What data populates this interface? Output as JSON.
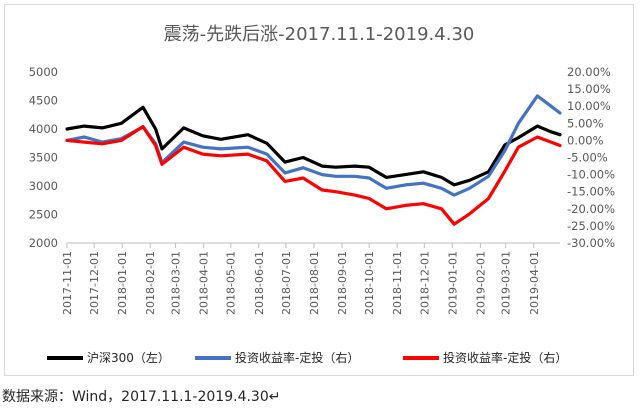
{
  "chart_data": {
    "type": "line",
    "title": "震荡-先跌后涨-2017.11.1-2019.4.30",
    "x_start": "2017-11-01",
    "x_end": "2019-04-30",
    "x_ticks": [
      "2017-11-01",
      "2017-12-01",
      "2018-01-01",
      "2018-02-01",
      "2018-03-01",
      "2018-04-01",
      "2018-05-01",
      "2018-06-01",
      "2018-07-01",
      "2018-08-01",
      "2018-09-01",
      "2018-10-01",
      "2018-11-01",
      "2018-12-01",
      "2019-01-01",
      "2019-02-01",
      "2019-03-01",
      "2019-04-01"
    ],
    "y_left": {
      "lim": [
        2000,
        5000
      ],
      "ticks": [
        "5000",
        "4500",
        "4000",
        "3500",
        "3000",
        "2500",
        "2000"
      ]
    },
    "y_right": {
      "lim": [
        -30,
        20
      ],
      "ticks": [
        "20.00%",
        "15.00%",
        "10.00%",
        "5.00%",
        "0.00%",
        "-5.00%",
        "-10.00%",
        "-15.00%",
        "-20.00%",
        "-25.00%",
        "-30.00%"
      ]
    },
    "grid": false,
    "legend_position": "bottom",
    "series": [
      {
        "name": "沪深300（左）",
        "axis": "left",
        "color": "#000000",
        "x": [
          "2017-11-01",
          "2017-11-20",
          "2017-12-10",
          "2017-12-31",
          "2018-01-24",
          "2018-02-07",
          "2018-02-14",
          "2018-03-10",
          "2018-03-31",
          "2018-04-20",
          "2018-05-20",
          "2018-06-10",
          "2018-06-30",
          "2018-07-20",
          "2018-08-10",
          "2018-08-25",
          "2018-09-15",
          "2018-10-01",
          "2018-10-20",
          "2018-11-10",
          "2018-11-30",
          "2018-12-20",
          "2019-01-03",
          "2019-01-20",
          "2019-02-10",
          "2019-02-28",
          "2019-03-15",
          "2019-04-05",
          "2019-04-20",
          "2019-04-30"
        ],
        "values": [
          4000,
          4050,
          4020,
          4100,
          4380,
          4000,
          3650,
          4020,
          3880,
          3820,
          3900,
          3750,
          3420,
          3500,
          3350,
          3330,
          3350,
          3330,
          3150,
          3200,
          3250,
          3150,
          3020,
          3100,
          3250,
          3720,
          3850,
          4050,
          3950,
          3900
        ]
      },
      {
        "name": "投资收益率-定投（右）",
        "axis": "right",
        "color": "#4472c4",
        "x": [
          "2017-11-01",
          "2017-11-20",
          "2017-12-10",
          "2017-12-31",
          "2018-01-24",
          "2018-02-07",
          "2018-02-14",
          "2018-03-10",
          "2018-03-31",
          "2018-04-20",
          "2018-05-20",
          "2018-06-10",
          "2018-06-30",
          "2018-07-20",
          "2018-08-10",
          "2018-08-25",
          "2018-09-15",
          "2018-10-01",
          "2018-10-20",
          "2018-11-10",
          "2018-11-30",
          "2018-12-20",
          "2019-01-03",
          "2019-01-20",
          "2019-02-10",
          "2019-02-28",
          "2019-03-15",
          "2019-04-05",
          "2019-04-20",
          "2019-04-30"
        ],
        "values": [
          0.0,
          1.0,
          -0.5,
          0.5,
          4.0,
          -1.0,
          -6.5,
          -0.5,
          -2.0,
          -2.5,
          -2.0,
          -4.0,
          -9.5,
          -8.0,
          -10.0,
          -10.5,
          -10.5,
          -11.0,
          -14.0,
          -13.0,
          -12.5,
          -14.0,
          -16.0,
          -14.0,
          -10.5,
          -3.0,
          5.0,
          13.0,
          10.0,
          8.0
        ]
      },
      {
        "name": "投资收益率-定投（右）",
        "axis": "right",
        "color": "#ff0000",
        "x": [
          "2017-11-01",
          "2017-11-20",
          "2017-12-10",
          "2017-12-31",
          "2018-01-24",
          "2018-02-07",
          "2018-02-14",
          "2018-03-10",
          "2018-03-31",
          "2018-04-20",
          "2018-05-20",
          "2018-06-10",
          "2018-06-30",
          "2018-07-20",
          "2018-08-10",
          "2018-08-25",
          "2018-09-15",
          "2018-10-01",
          "2018-10-20",
          "2018-11-10",
          "2018-11-30",
          "2018-12-20",
          "2019-01-03",
          "2019-01-20",
          "2019-02-10",
          "2019-02-28",
          "2019-03-15",
          "2019-04-05",
          "2019-04-20",
          "2019-04-30"
        ],
        "values": [
          0.0,
          -0.5,
          -1.0,
          0.0,
          4.0,
          -1.5,
          -7.0,
          -2.0,
          -4.0,
          -4.5,
          -4.0,
          -6.0,
          -12.0,
          -11.0,
          -14.5,
          -15.0,
          -16.0,
          -17.0,
          -20.0,
          -19.0,
          -18.5,
          -20.0,
          -24.5,
          -21.5,
          -17.0,
          -9.0,
          -2.0,
          1.0,
          -0.5,
          -1.5
        ]
      }
    ]
  },
  "source_note": "数据来源：Wind，2017.11.1-2019.4.30↵"
}
